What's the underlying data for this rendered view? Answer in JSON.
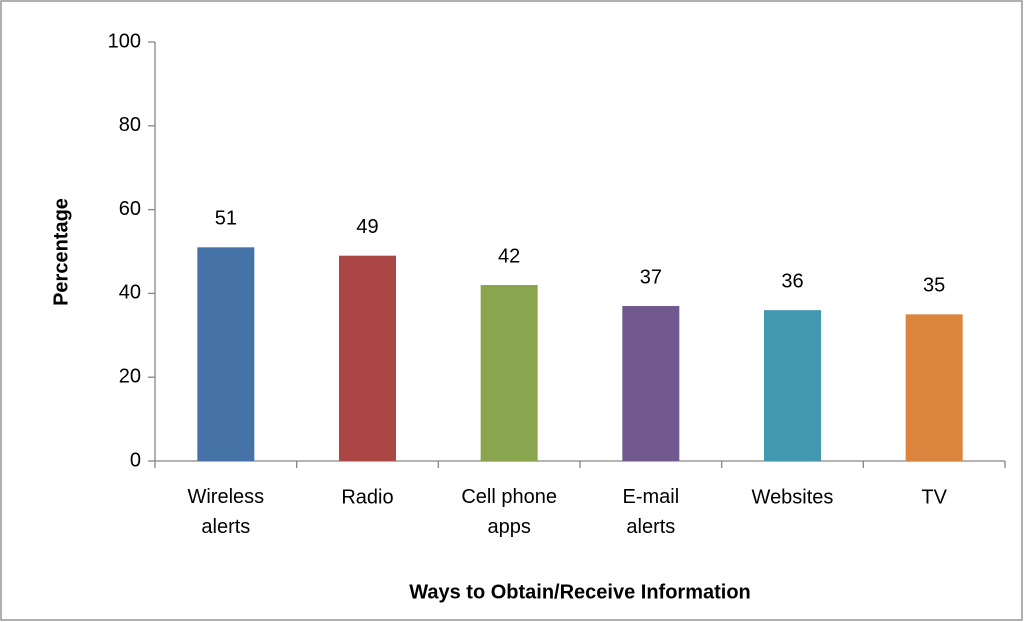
{
  "chart_data": {
    "type": "bar",
    "x_label": "Ways to Obtain/Receive Information",
    "y_label": "Percentage",
    "categories": [
      "Wireless\nalerts",
      "Radio",
      "Cell phone\napps",
      "E-mail\nalerts",
      "Websites",
      "TV"
    ],
    "values": [
      51,
      49,
      42,
      37,
      36,
      35
    ],
    "colors": [
      "#4572a7",
      "#aa4643",
      "#89a54e",
      "#71588f",
      "#4198af",
      "#db843d"
    ],
    "ylim": [
      0,
      100
    ],
    "yticks": [
      0,
      20,
      40,
      60,
      80,
      100
    ],
    "grid": false
  }
}
